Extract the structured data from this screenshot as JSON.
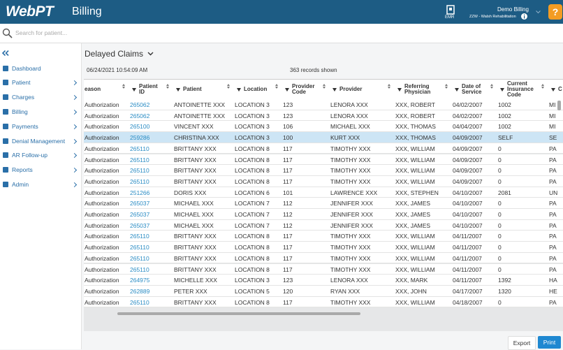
{
  "header": {
    "logo": "WebPT",
    "app": "Billing",
    "emr": "EMR",
    "user": "Demo Billing",
    "clinic": "ZZW - Walsh Rehabilitation",
    "help": "?"
  },
  "search": {
    "placeholder": "Search for patient..."
  },
  "sidebar": {
    "items": [
      "Dashboard",
      "Patient",
      "Charges",
      "Billing",
      "Payments",
      "Denial Management",
      "AR Follow-up",
      "Reports",
      "Admin"
    ]
  },
  "page": {
    "title": "Delayed Claims",
    "timestamp": "06/24/2021  10:54:09 AM",
    "records": "363 records shown"
  },
  "table": {
    "columns": [
      "eason",
      "Patient ID",
      "Patient",
      "Location",
      "Provider Code",
      "Provider",
      "Referring Physician",
      "Date of Service",
      "Current Insurance Code",
      "C"
    ],
    "rows": [
      [
        "Authorization",
        "265062",
        "ANTOINETTE XXX",
        "LOCATION 3",
        "123",
        "LENORA XXX",
        "XXX, ROBERT",
        "04/02/2007",
        "1002",
        "MI"
      ],
      [
        "Authorization",
        "265062",
        "ANTOINETTE XXX",
        "LOCATION 3",
        "123",
        "LENORA XXX",
        "XXX, ROBERT",
        "04/02/2007",
        "1002",
        "MI"
      ],
      [
        "Authorization",
        "265100",
        "VINCENT XXX",
        "LOCATION 3",
        "106",
        "MICHAEL XXX",
        "XXX, THOMAS",
        "04/04/2007",
        "1002",
        "MI"
      ],
      [
        "Authorization",
        "259286",
        "CHRISTINA XXX",
        "LOCATION 3",
        "100",
        "KURT XXX",
        "XXX, THOMAS",
        "04/09/2007",
        "SELF",
        "SE"
      ],
      [
        "Authorization",
        "265110",
        "BRITTANY XXX",
        "LOCATION 8",
        "117",
        "TIMOTHY XXX",
        "XXX, WILLIAM",
        "04/09/2007",
        "0",
        "PA"
      ],
      [
        "Authorization",
        "265110",
        "BRITTANY XXX",
        "LOCATION 8",
        "117",
        "TIMOTHY XXX",
        "XXX, WILLIAM",
        "04/09/2007",
        "0",
        "PA"
      ],
      [
        "Authorization",
        "265110",
        "BRITTANY XXX",
        "LOCATION 8",
        "117",
        "TIMOTHY XXX",
        "XXX, WILLIAM",
        "04/09/2007",
        "0",
        "PA"
      ],
      [
        "Authorization",
        "265110",
        "BRITTANY XXX",
        "LOCATION 8",
        "117",
        "TIMOTHY XXX",
        "XXX, WILLIAM",
        "04/09/2007",
        "0",
        "PA"
      ],
      [
        "Authorization",
        "251266",
        "DORIS XXX",
        "LOCATION 6",
        "101",
        "LAWRENCE XXX",
        "XXX, STEPHEN",
        "04/10/2007",
        "2081",
        "UN"
      ],
      [
        "Authorization",
        "265037",
        "MICHAEL XXX",
        "LOCATION 7",
        "112",
        "JENNIFER XXX",
        "XXX, JAMES",
        "04/10/2007",
        "0",
        "PA"
      ],
      [
        "Authorization",
        "265037",
        "MICHAEL XXX",
        "LOCATION 7",
        "112",
        "JENNIFER XXX",
        "XXX, JAMES",
        "04/10/2007",
        "0",
        "PA"
      ],
      [
        "Authorization",
        "265037",
        "MICHAEL XXX",
        "LOCATION 7",
        "112",
        "JENNIFER XXX",
        "XXX, JAMES",
        "04/10/2007",
        "0",
        "PA"
      ],
      [
        "Authorization",
        "265110",
        "BRITTANY XXX",
        "LOCATION 8",
        "117",
        "TIMOTHY XXX",
        "XXX, WILLIAM",
        "04/11/2007",
        "0",
        "PA"
      ],
      [
        "Authorization",
        "265110",
        "BRITTANY XXX",
        "LOCATION 8",
        "117",
        "TIMOTHY XXX",
        "XXX, WILLIAM",
        "04/11/2007",
        "0",
        "PA"
      ],
      [
        "Authorization",
        "265110",
        "BRITTANY XXX",
        "LOCATION 8",
        "117",
        "TIMOTHY XXX",
        "XXX, WILLIAM",
        "04/11/2007",
        "0",
        "PA"
      ],
      [
        "Authorization",
        "265110",
        "BRITTANY XXX",
        "LOCATION 8",
        "117",
        "TIMOTHY XXX",
        "XXX, WILLIAM",
        "04/11/2007",
        "0",
        "PA"
      ],
      [
        "Authorization",
        "264975",
        "MICHELLE XXX",
        "LOCATION 3",
        "123",
        "LENORA XXX",
        "XXX, MARK",
        "04/11/2007",
        "1392",
        "HA"
      ],
      [
        "Authorization",
        "262889",
        "PETER XXX",
        "LOCATION 5",
        "120",
        "RYAN XXX",
        "XXX, JOHN",
        "04/17/2007",
        "1320",
        "HE"
      ],
      [
        "Authorization",
        "265110",
        "BRITTANY XXX",
        "LOCATION 8",
        "117",
        "TIMOTHY XXX",
        "XXX, WILLIAM",
        "04/18/2007",
        "0",
        "PA"
      ]
    ]
  },
  "footer": {
    "buttons": [
      "Export",
      "Print"
    ]
  }
}
